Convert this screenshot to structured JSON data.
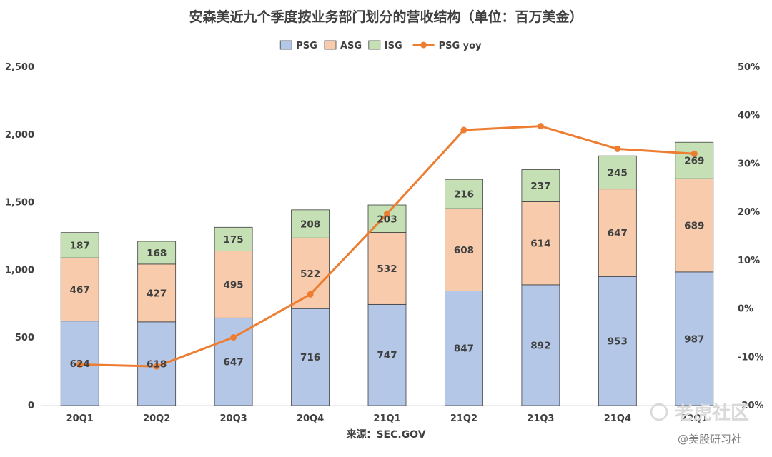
{
  "chart_data": {
    "type": "bar",
    "title": "安森美近九个季度按业务部门划分的营收结构（单位：百万美金）",
    "categories": [
      "20Q1",
      "20Q2",
      "20Q3",
      "20Q4",
      "21Q1",
      "21Q2",
      "21Q3",
      "21Q4",
      "22Q1"
    ],
    "series": [
      {
        "name": "PSG",
        "type": "bar",
        "color": "#b4c7e7",
        "values": [
          624,
          618,
          647,
          716,
          747,
          847,
          892,
          953,
          987
        ]
      },
      {
        "name": "ASG",
        "type": "bar",
        "color": "#f8cbad",
        "values": [
          467,
          427,
          495,
          522,
          532,
          608,
          614,
          647,
          689
        ]
      },
      {
        "name": "ISG",
        "type": "bar",
        "color": "#c5e0b4",
        "values": [
          187,
          168,
          175,
          208,
          203,
          216,
          237,
          245,
          269
        ]
      },
      {
        "name": "PSG yoy",
        "type": "line",
        "color": "#ed7d31",
        "axis": "secondary",
        "values": [
          -11.5,
          -11.9,
          -5.9,
          3.0,
          19.7,
          37.0,
          37.8,
          33.1,
          32.1
        ]
      }
    ],
    "stacked": true,
    "ylim": [
      0,
      2500
    ],
    "y_ticks": [
      "0",
      "500",
      "1,000",
      "1,500",
      "2,000",
      "2,500"
    ],
    "y_tick_values": [
      0,
      500,
      1000,
      1500,
      2000,
      2500
    ],
    "y2lim": [
      -20,
      50
    ],
    "y2_ticks": [
      "-20%",
      "-10%",
      "0%",
      "10%",
      "20%",
      "30%",
      "40%",
      "50%"
    ],
    "y2_tick_values": [
      -20,
      -10,
      0,
      10,
      20,
      30,
      40,
      50
    ],
    "legend_position": "top-center",
    "grid": false,
    "xlabel": "",
    "ylabel": ""
  },
  "source": "来源：SEC.GOV",
  "watermark": {
    "brand": "老虎社区",
    "handle": "@美股研习社"
  },
  "colors": {
    "text": "#404040",
    "axis": "#d9d9d9",
    "bar_border": "#404040"
  }
}
